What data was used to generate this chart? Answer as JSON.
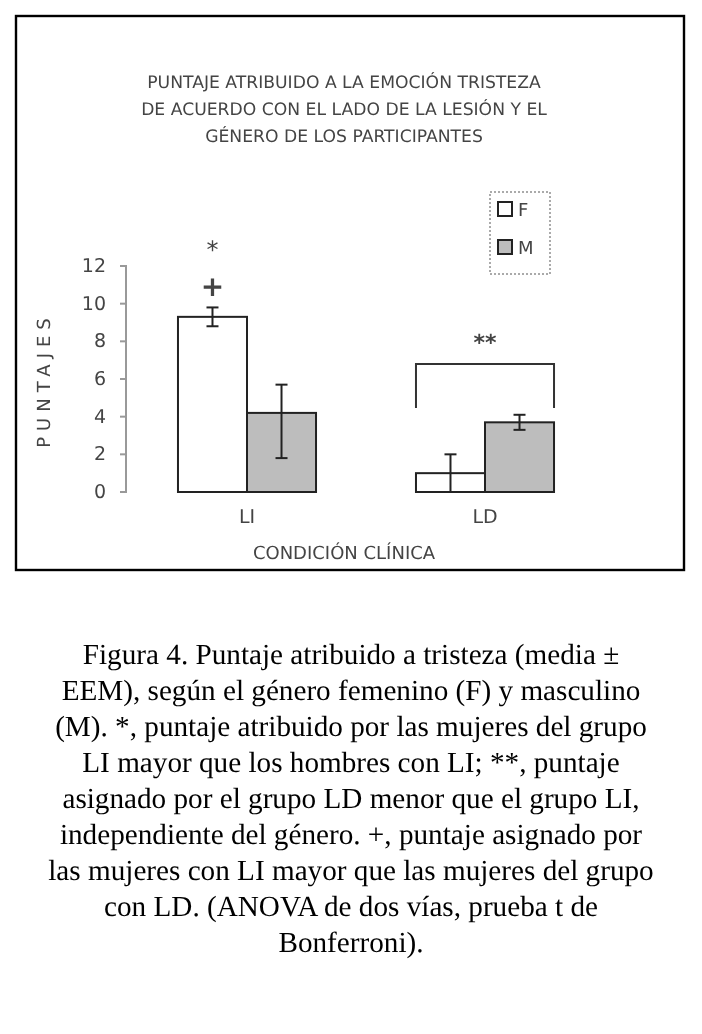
{
  "chart_data": {
    "type": "bar",
    "title": "PUNTAJE ATRIBUIDO A LA EMOCIÓN TRISTEZA\nDE ACUERDO CON EL LADO DE LA LESIÓN Y EL\nGÉNERO DE LOS PARTICIPANTES",
    "xlabel": "CONDICIÓN CLÍNICA",
    "ylabel": "PUNTAJES",
    "categories": [
      "LI",
      "LD"
    ],
    "series": [
      {
        "name": "F",
        "color": "#ffffff",
        "values": [
          9.3,
          1.0
        ],
        "errors": [
          0.5,
          [
            0,
            2.0
          ]
        ]
      },
      {
        "name": "M",
        "color": "#bdbdbd",
        "values": [
          4.2,
          3.7
        ],
        "errors": [
          [
            1.8,
            5.7
          ],
          0.4
        ]
      }
    ],
    "ylim": [
      0,
      12
    ],
    "yticks": [
      0,
      2,
      4,
      6,
      8,
      10,
      12
    ],
    "grid": false,
    "legend": "top right",
    "annotations": [
      "+",
      "*",
      "**",
      "Figura 4.  Puntaje atribuido a tristeza (media ± EEM), según el género femenino (F) y masculino (M). *, puntaje atribuido por las mujeres del grupo LI mayor que los hombres con LI; **, puntaje asignado por el grupo LD menor que el grupo LI, independiente del género. +, puntaje asignado por las mujeres con LI mayor que las mujeres del grupo con LD. (ANOVA de dos vías, prueba t de Bonferroni)."
    ]
  }
}
